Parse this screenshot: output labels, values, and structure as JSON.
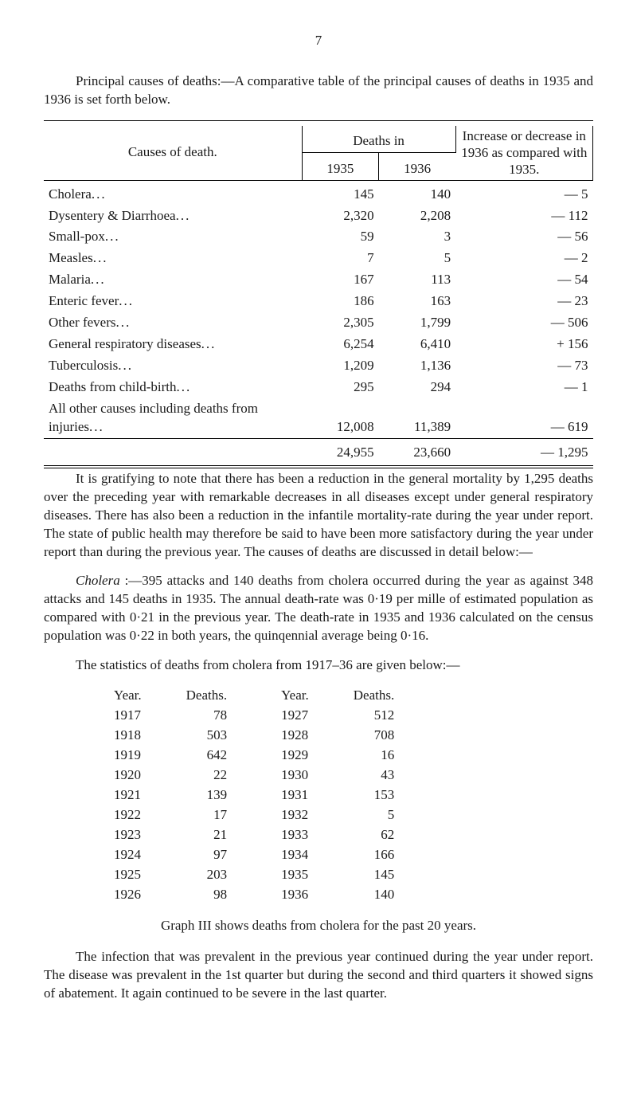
{
  "page_number": "7",
  "intro_para": "Principal causes of deaths:—A comparative table of the principal causes of deaths in 1935 and 1936 is set forth below.",
  "main_table": {
    "col_cause_label": "Causes of death.",
    "deaths_in_label": "Deaths in",
    "year1": "1935",
    "year2": "1936",
    "diff_label": "Increase or decrease in 1936 as compared with 1935.",
    "rows": [
      {
        "label": "Cholera",
        "y1": "145",
        "y2": "140",
        "diff": "— 5"
      },
      {
        "label": "Dysentery & Diarrhoea",
        "y1": "2,320",
        "y2": "2,208",
        "diff": "— 112"
      },
      {
        "label": "Small-pox",
        "y1": "59",
        "y2": "3",
        "diff": "— 56"
      },
      {
        "label": "Measles",
        "y1": "7",
        "y2": "5",
        "diff": "— 2"
      },
      {
        "label": "Malaria",
        "y1": "167",
        "y2": "113",
        "diff": "— 54"
      },
      {
        "label": "Enteric fever",
        "y1": "186",
        "y2": "163",
        "diff": "— 23"
      },
      {
        "label": "Other fevers",
        "y1": "2,305",
        "y2": "1,799",
        "diff": "— 506"
      },
      {
        "label": "General respiratory diseases",
        "y1": "6,254",
        "y2": "6,410",
        "diff": "+ 156"
      },
      {
        "label": "Tuberculosis",
        "y1": "1,209",
        "y2": "1,136",
        "diff": "— 73"
      },
      {
        "label": "Deaths from child-birth",
        "y1": "295",
        "y2": "294",
        "diff": "— 1"
      },
      {
        "label": "All other causes including deaths from injuries",
        "y1": "12,008",
        "y2": "11,389",
        "diff": "— 619"
      }
    ],
    "totals": {
      "y1": "24,955",
      "y2": "23,660",
      "diff": "— 1,295"
    }
  },
  "para2": "It is gratifying to note that there has been a reduction in the general mortality by 1,295 deaths over the preceding year with remarkable decreases in all diseases except under general respiratory diseases. There has also been a reduction in the infantile mortality-rate during the year under report. The state of public health may therefore be said to have been more satisfactory during the year under report than during the previous year. The causes of deaths are discussed in detail below:—",
  "para3": "Cholera :—395 attacks and 140 deaths from cholera occurred during the year as against 348 attacks and 145 deaths in 1935. The annual death-rate was 0·19 per mille of estimated population as compared with 0·21 in the previous year. The death-rate in 1935 and 1936 calculated on the census population was 0·22 in both years, the quinqennial average being 0·16.",
  "para4": "The statistics of deaths from cholera from 1917–36 are given below:—",
  "stats_table": {
    "headers": [
      "Year.",
      "Deaths.",
      "Year.",
      "Deaths."
    ],
    "rows": [
      [
        "1917",
        "78",
        "1927",
        "512"
      ],
      [
        "1918",
        "503",
        "1928",
        "708"
      ],
      [
        "1919",
        "642",
        "1929",
        "16"
      ],
      [
        "1920",
        "22",
        "1930",
        "43"
      ],
      [
        "1921",
        "139",
        "1931",
        "153"
      ],
      [
        "1922",
        "17",
        "1932",
        "5"
      ],
      [
        "1923",
        "21",
        "1933",
        "62"
      ],
      [
        "1924",
        "97",
        "1934",
        "166"
      ],
      [
        "1925",
        "203",
        "1935",
        "145"
      ],
      [
        "1926",
        "98",
        "1936",
        "140"
      ]
    ]
  },
  "graph_line": "Graph III shows deaths from cholera for the past 20 years.",
  "para5": "The infection that was prevalent in the previous year continued during the year under report. The disease was prevalent in the 1st quarter but during the second and third quarters it showed signs of abatement. It again continued to be severe in the last quarter."
}
